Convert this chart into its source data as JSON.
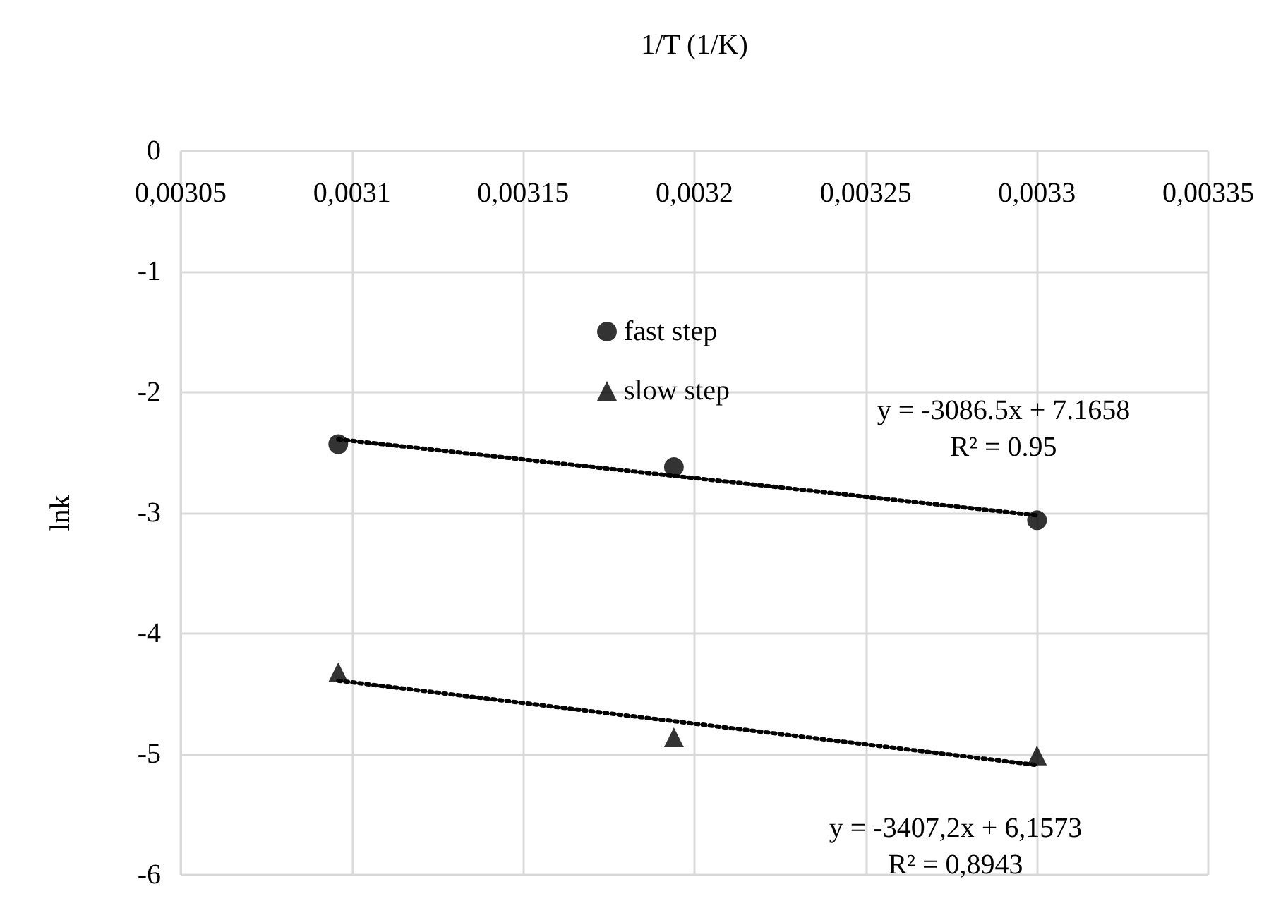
{
  "chart_data": {
    "type": "scatter",
    "xlabel": "1/T (1/K)",
    "ylabel": "lnk",
    "xlim": [
      0.00305,
      0.00335
    ],
    "xticks": [
      {
        "value": 0.00305,
        "label": "0,00305"
      },
      {
        "value": 0.0031,
        "label": "0,0031"
      },
      {
        "value": 0.00315,
        "label": "0,00315"
      },
      {
        "value": 0.0032,
        "label": "0,0032"
      },
      {
        "value": 0.00325,
        "label": "0,00325"
      },
      {
        "value": 0.0033,
        "label": "0,0033"
      },
      {
        "value": 0.00335,
        "label": "0,00335"
      }
    ],
    "ylim": [
      -6,
      0
    ],
    "yticks": [
      -6,
      -5,
      -4,
      -3,
      -2,
      -1,
      0
    ],
    "grid": true,
    "legend": "top",
    "series": [
      {
        "name": "fast step",
        "type": "scatter",
        "marker": "circle",
        "color": "#000000",
        "x": [
          0.003096,
          0.003194,
          0.0033
        ],
        "values": [
          -2.43,
          -2.62,
          -3.06
        ]
      },
      {
        "name": "slow step",
        "type": "scatter",
        "marker": "triangle",
        "color": "#000000",
        "x": [
          0.003096,
          0.003194,
          0.0033
        ],
        "values": [
          -4.32,
          -4.86,
          -5.01
        ]
      },
      {
        "type": "line",
        "marker": "none",
        "line_style": "dotted",
        "color": "#000000",
        "x": [
          0.003096,
          0.0033
        ],
        "values": [
          -2.39,
          -3.02
        ]
      },
      {
        "type": "line",
        "marker": "none",
        "line_style": "dotted",
        "color": "#000000",
        "x": [
          0.003096,
          0.0033
        ],
        "values": [
          -4.39,
          -5.09
        ]
      }
    ],
    "annotations": [
      "y = -3086.5x + 7.1658\nR² = 0.95",
      "y = -3407,2x + 6,1573\nR² = 0,8943"
    ]
  }
}
